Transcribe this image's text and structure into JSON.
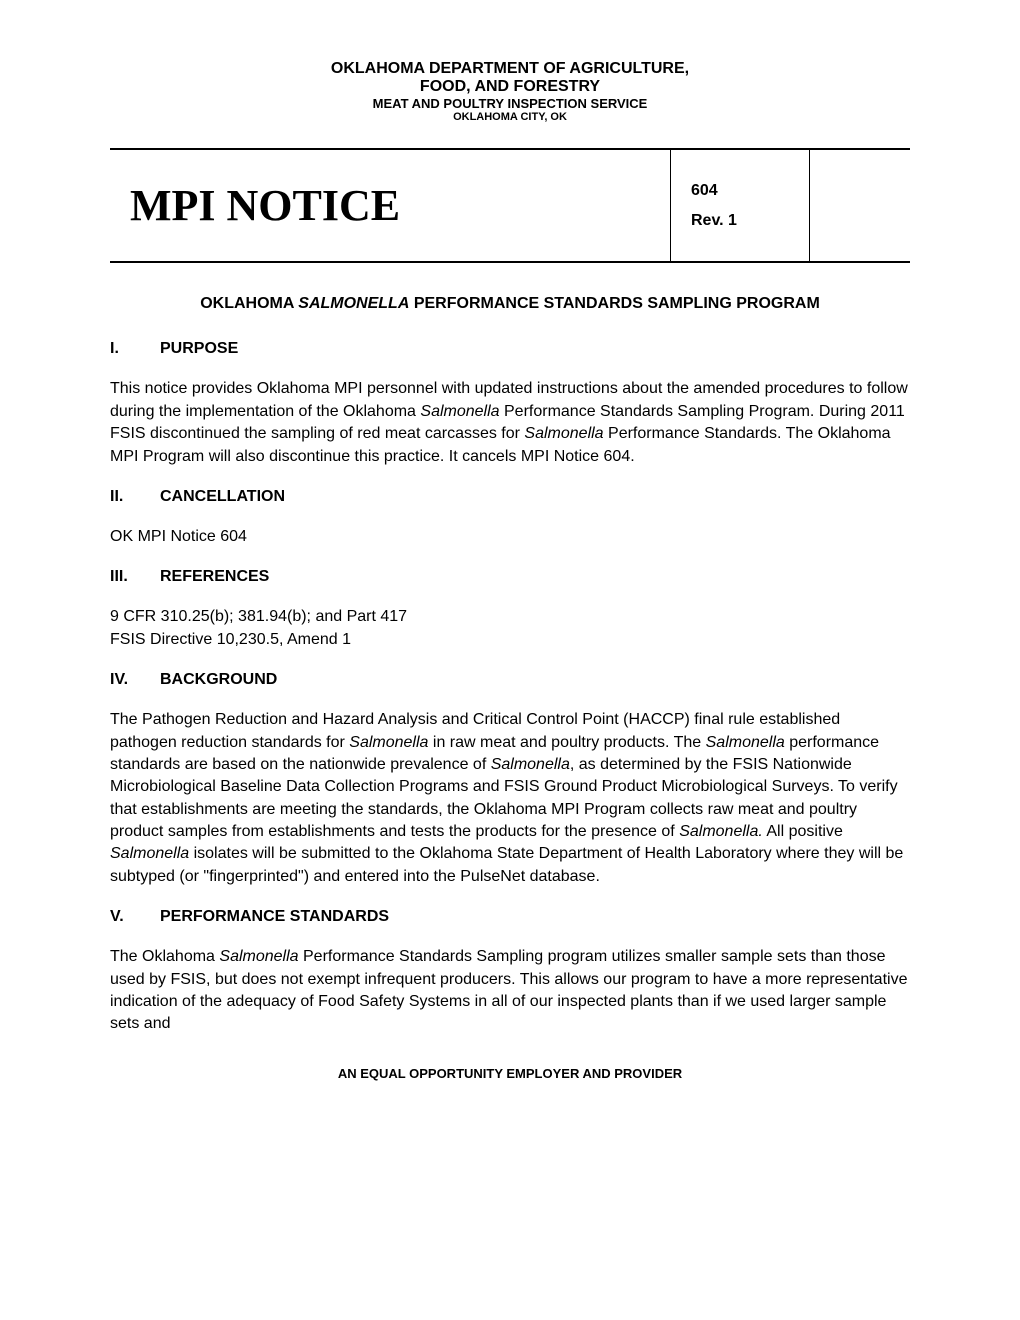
{
  "header": {
    "line1": "OKLAHOMA DEPARTMENT OF AGRICULTURE,",
    "line2": "FOOD, AND FORESTRY",
    "line3": "MEAT AND POULTRY INSPECTION SERVICE",
    "line4": "OKLAHOMA CITY, OK"
  },
  "notice_header": {
    "title": "MPI NOTICE",
    "number": "604",
    "revision": "Rev. 1"
  },
  "document_title": {
    "prefix": "OKLAHOMA ",
    "italic": "SALMONELLA",
    "suffix": " PERFORMANCE STANDARDS SAMPLING PROGRAM"
  },
  "sections": {
    "purpose": {
      "num": "I.",
      "heading": "PURPOSE",
      "body_part1": "This notice provides Oklahoma MPI personnel with updated instructions about the amended procedures to follow during the implementation of the Oklahoma ",
      "body_italic1": "Salmonella",
      "body_part2": " Performance Standards Sampling Program.  During 2011 FSIS discontinued the sampling of red meat carcasses for ",
      "body_italic2": "Salmonella",
      "body_part3": " Performance Standards.  The Oklahoma MPI Program will also discontinue this practice.  It cancels MPI Notice 604."
    },
    "cancellation": {
      "num": "II.",
      "heading": "CANCELLATION",
      "body": "OK MPI Notice 604"
    },
    "references": {
      "num": "III.",
      "heading": "REFERENCES",
      "body_line1": "9 CFR 310.25(b); 381.94(b); and Part 417",
      "body_line2": "FSIS Directive 10,230.5, Amend 1"
    },
    "background": {
      "num": "IV.",
      "heading": "BACKGROUND",
      "body_part1": "The Pathogen Reduction and Hazard Analysis and Critical Control Point (HACCP) final rule established pathogen reduction standards for ",
      "body_italic1": "Salmonella",
      "body_part2": " in raw meat and poultry products.  The ",
      "body_italic2": "Salmonella",
      "body_part3": " performance standards are based on the nationwide prevalence of ",
      "body_italic3": "Salmonella",
      "body_part4": ", as determined by the FSIS Nationwide Microbiological Baseline Data Collection Programs and FSIS Ground Product Microbiological Surveys. To verify that establishments are meeting the standards, the Oklahoma MPI Program collects raw meat and poultry product samples from establishments and tests the products for the presence of ",
      "body_italic4": "Salmonella.",
      "body_part5": " All positive ",
      "body_italic5": "Salmonella",
      "body_part6": " isolates will be submitted to the Oklahoma State Department of Health Laboratory where they will be subtyped (or \"fingerprinted\") and entered into the PulseNet database."
    },
    "performance": {
      "num": "V.",
      "heading": "PERFORMANCE STANDARDS",
      "body_part1": "The Oklahoma ",
      "body_italic1": "Salmonella",
      "body_part2": " Performance Standards Sampling program utilizes smaller sample sets than those used by FSIS, but does not exempt infrequent producers.  This allows our program to have a more representative indication of the adequacy of Food Safety Systems in all of our inspected plants than if we used larger sample sets and"
    }
  },
  "footer": "AN EQUAL OPPORTUNITY EMPLOYER AND PROVIDER",
  "styles": {
    "background_color": "#ffffff",
    "text_color": "#000000",
    "border_color": "#000000",
    "body_font_family": "Arial",
    "title_font_family": "Times New Roman",
    "header_line1_fontsize": 16,
    "header_line3_fontsize": 13,
    "header_line4_fontsize": 11,
    "notice_title_fontsize": 44,
    "body_fontsize": 16,
    "footer_fontsize": 13
  }
}
